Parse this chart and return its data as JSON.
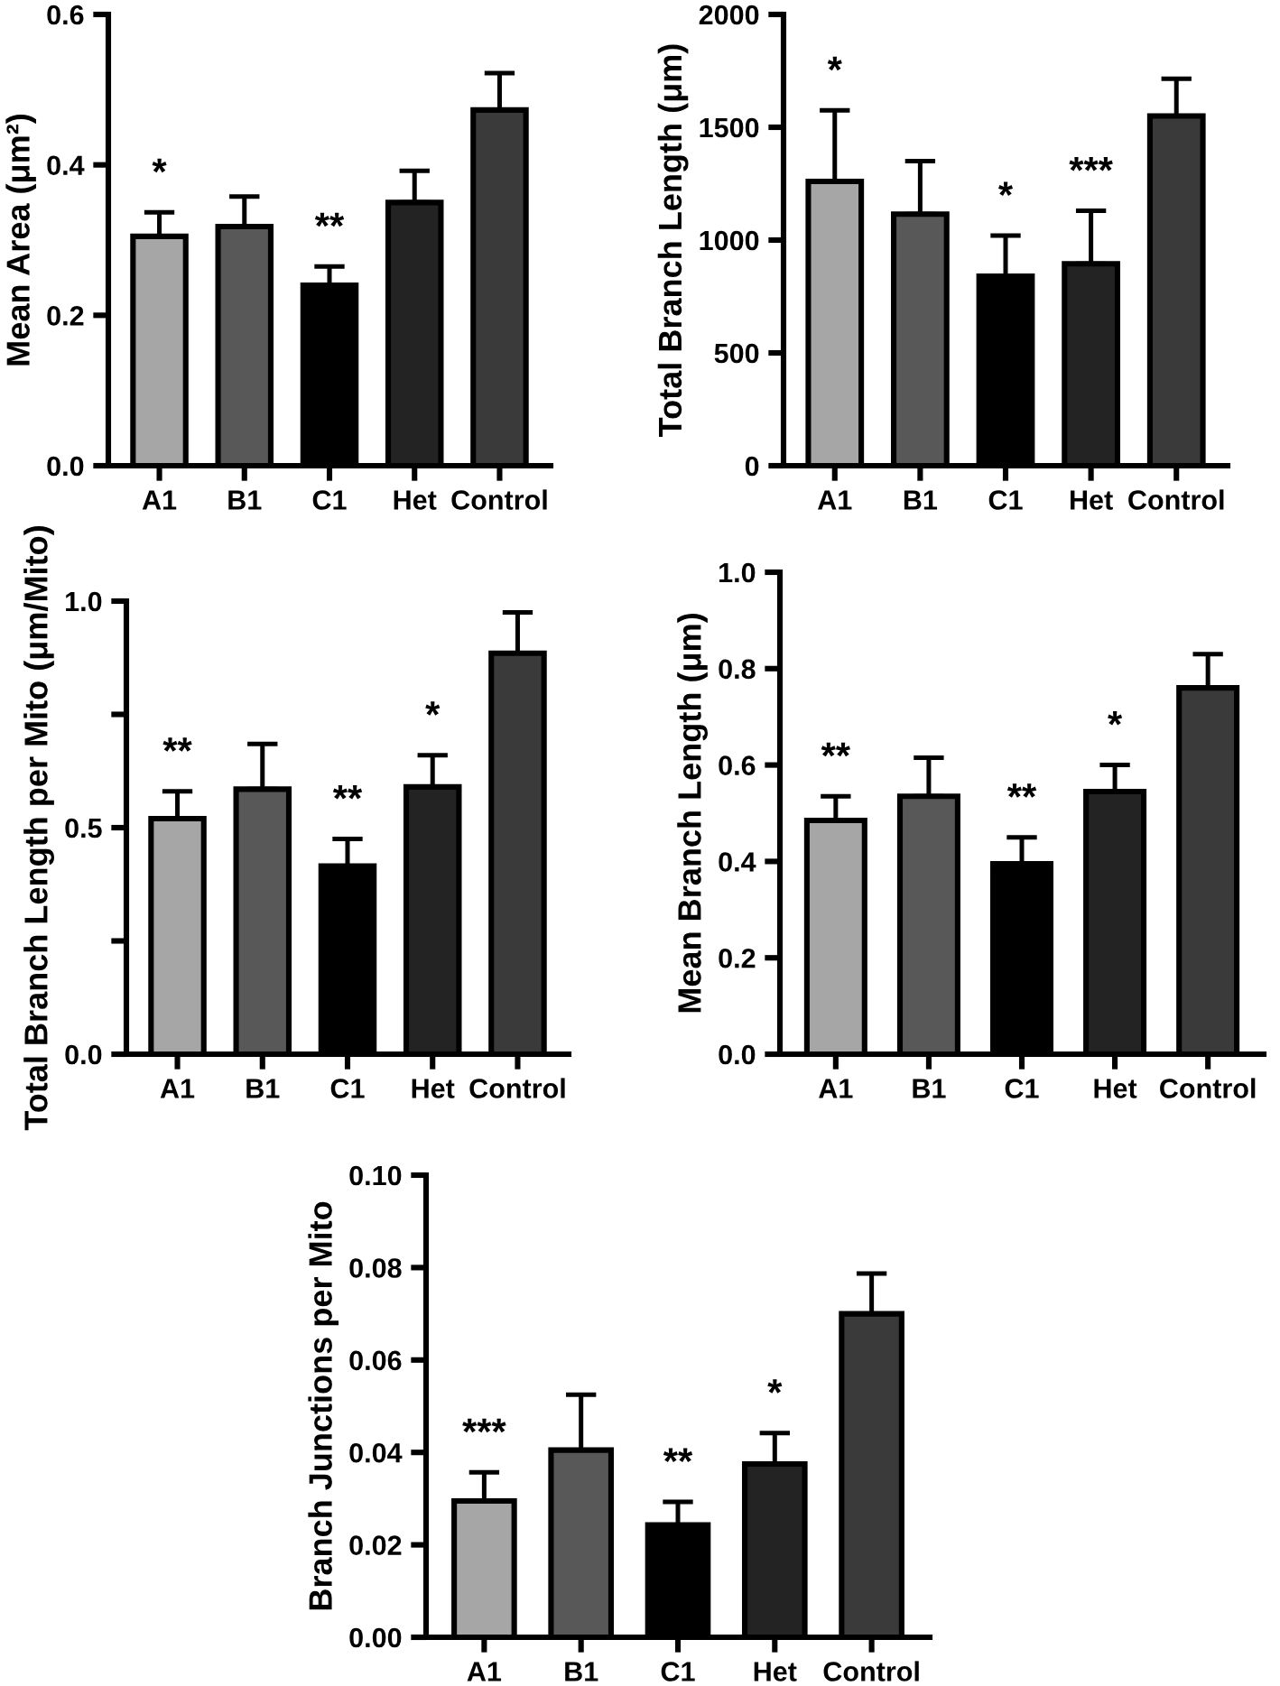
{
  "chart_data": [
    {
      "type": "bar",
      "ylabel": "Mean Area (μm²)",
      "categories": [
        "A1",
        "B1",
        "C1",
        "Het",
        "Control"
      ],
      "values": [
        0.305,
        0.318,
        0.24,
        0.35,
        0.473
      ],
      "colors": [
        "#a6a6a6",
        "#585858",
        "#000000",
        "#232323",
        "#3a3a3a"
      ],
      "errors": [
        [
          0.305,
          0.337
        ],
        [
          0.318,
          0.358
        ],
        [
          0.24,
          0.265
        ],
        [
          0.35,
          0.392
        ],
        [
          0.473,
          0.522
        ]
      ],
      "ylim": [
        0,
        0.6
      ],
      "yticks": [
        {
          "value": 0,
          "label": "0.0"
        },
        0.2,
        0.4,
        0.6
      ],
      "grid": false,
      "value_labels": [
        "*",
        null,
        "**",
        null,
        null
      ]
    },
    {
      "type": "bar",
      "ylabel": "Total Branch Length (μm)",
      "categories": [
        "A1",
        "B1",
        "C1",
        "Het",
        "Control"
      ],
      "values": [
        1260,
        1115,
        840,
        895,
        1550
      ],
      "colors": [
        "#a6a6a6",
        "#585858",
        "#000000",
        "#232323",
        "#3a3a3a"
      ],
      "errors": [
        [
          1260,
          1575
        ],
        [
          1115,
          1350
        ],
        [
          840,
          1020
        ],
        [
          895,
          1130
        ],
        [
          1550,
          1715
        ]
      ],
      "ylim": [
        0,
        2000
      ],
      "yticks": [
        0,
        500,
        1000,
        1500,
        2000
      ],
      "grid": false,
      "value_labels": [
        "*",
        null,
        "*",
        "***",
        null
      ]
    },
    {
      "type": "bar",
      "ylabel": "Total Branch Length per Mito (μm/Mito)",
      "categories": [
        "A1",
        "B1",
        "C1",
        "Het",
        "Control"
      ],
      "values": [
        0.52,
        0.585,
        0.415,
        0.59,
        0.885
      ],
      "colors": [
        "#a6a6a6",
        "#585858",
        "#000000",
        "#232323",
        "#3a3a3a"
      ],
      "errors": [
        [
          0.52,
          0.58
        ],
        [
          0.585,
          0.685
        ],
        [
          0.415,
          0.475
        ],
        [
          0.59,
          0.66
        ],
        [
          0.885,
          0.975
        ]
      ],
      "ylim": [
        0,
        1.0
      ],
      "yticks": [
        {
          "value": 0,
          "label": "0.0"
        },
        {
          "value": 0.25,
          "label": null
        },
        0.5,
        {
          "value": 0.75,
          "label": null
        },
        {
          "value": 1,
          "label": "1.0"
        }
      ],
      "grid": false,
      "value_labels": [
        "**",
        null,
        "**",
        "*",
        null
      ]
    },
    {
      "type": "bar",
      "ylabel": "Mean Branch Length (μm)",
      "categories": [
        "A1",
        "B1",
        "C1",
        "Het",
        "Control"
      ],
      "values": [
        0.485,
        0.535,
        0.395,
        0.545,
        0.76
      ],
      "colors": [
        "#a6a6a6",
        "#585858",
        "#000000",
        "#232323",
        "#3a3a3a"
      ],
      "errors": [
        [
          0.485,
          0.535
        ],
        [
          0.535,
          0.615
        ],
        [
          0.395,
          0.45
        ],
        [
          0.545,
          0.6
        ],
        [
          0.76,
          0.83
        ]
      ],
      "ylim": [
        0,
        1.0
      ],
      "yticks": [
        {
          "value": 0,
          "label": "0.0"
        },
        0.2,
        0.4,
        0.6,
        0.8,
        {
          "value": 1,
          "label": "1.0"
        }
      ],
      "grid": false,
      "value_labels": [
        "**",
        null,
        "**",
        "*",
        null
      ]
    },
    {
      "type": "bar",
      "ylabel": "Branch Junctions per Mito",
      "categories": [
        "A1",
        "B1",
        "C1",
        "Het",
        "Control"
      ],
      "values": [
        0.0295,
        0.0405,
        0.0243,
        0.0375,
        0.07
      ],
      "colors": [
        "#a6a6a6",
        "#585858",
        "#000000",
        "#232323",
        "#3a3a3a"
      ],
      "errors": [
        [
          0.0295,
          0.0357
        ],
        [
          0.0405,
          0.0525
        ],
        [
          0.0243,
          0.0293
        ],
        [
          0.0375,
          0.0442
        ],
        [
          0.07,
          0.0787
        ]
      ],
      "ylim": [
        0,
        0.1
      ],
      "yticks": [
        {
          "value": 0,
          "label": "0.00"
        },
        0.02,
        0.04,
        0.06,
        0.08,
        {
          "value": 0.1,
          "label": "0.10"
        }
      ],
      "grid": false,
      "value_labels": [
        "***",
        null,
        "**",
        "*",
        null
      ]
    }
  ]
}
